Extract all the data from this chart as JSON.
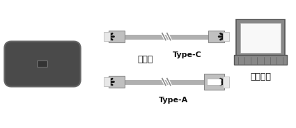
{
  "bg_color": "#ffffff",
  "device_color": "#4a4a4a",
  "device_edge": "#666666",
  "cable_color": "#b0b0b0",
  "connector_color": "#c0c0c0",
  "connector_edge": "#888888",
  "connector_face_color": "#e8e8e8",
  "arrow_color": "#111111",
  "laptop_body": "#888888",
  "laptop_edge": "#555555",
  "laptop_screen_fill": "#f8f8f8",
  "text_matawa": "または",
  "text_typeC": "Type-C",
  "text_typeA": "Type-A",
  "text_pasokon": "パソコン",
  "fig_w": 4.25,
  "fig_h": 1.84,
  "dpi": 100
}
